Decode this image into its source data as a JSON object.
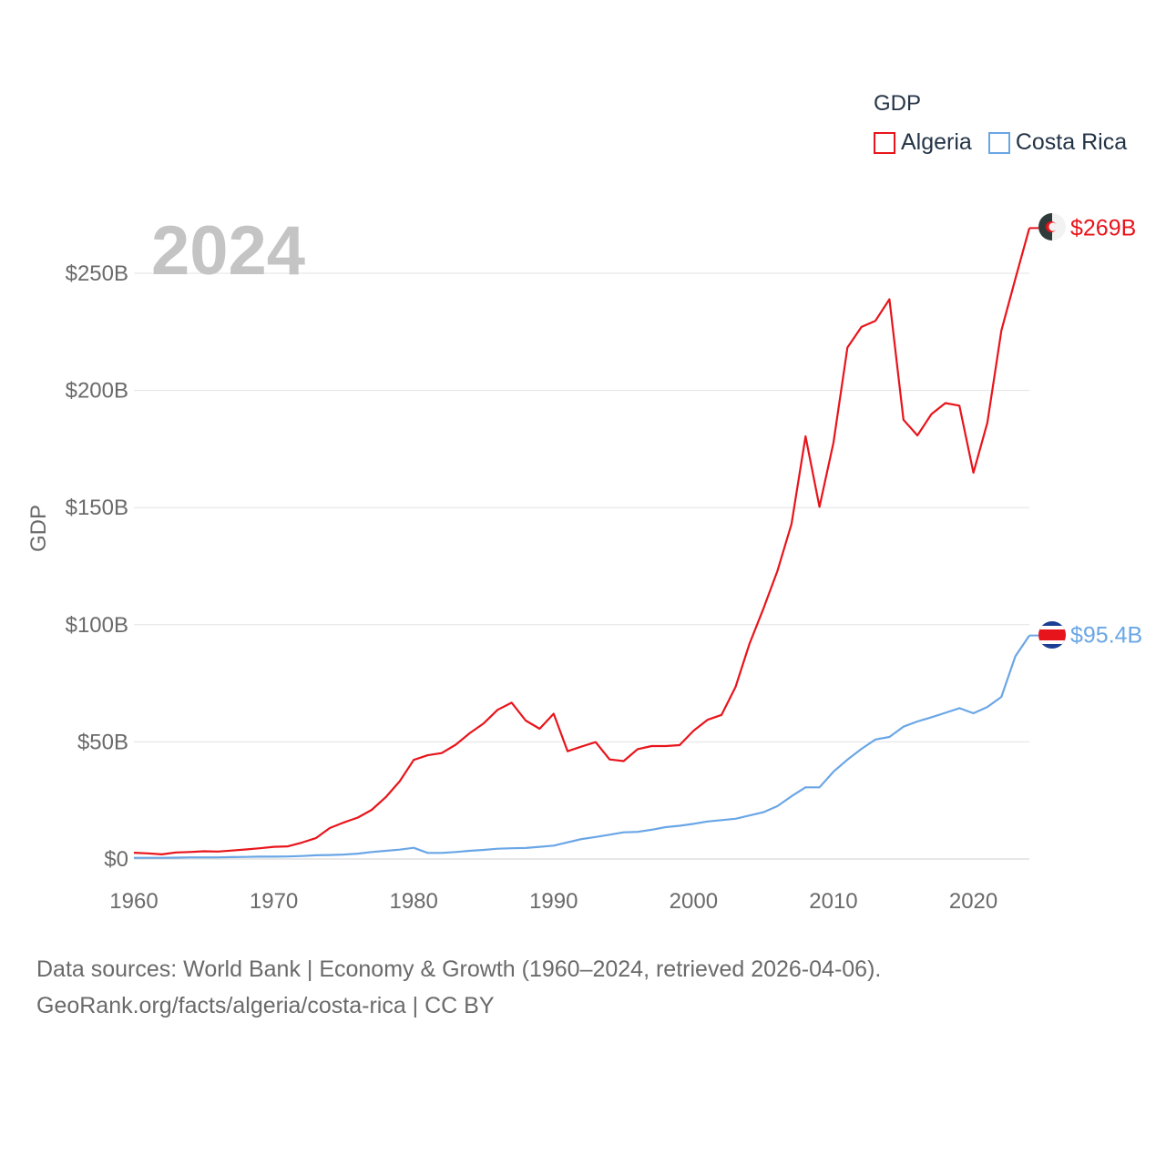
{
  "legend": {
    "title": "GDP",
    "items": [
      {
        "name": "Algeria",
        "color": "#e8141b"
      },
      {
        "name": "Costa Rica",
        "color": "#6aa6e6"
      }
    ]
  },
  "year_label": "2024",
  "footer": {
    "line1": "Data sources: World Bank | Economy & Growth (1960–2024, retrieved 2026-04-06).",
    "line2": "GeoRank.org/facts/algeria/costa-rica | CC BY"
  },
  "chart_data": {
    "type": "line",
    "title": "GDP",
    "xlabel": "",
    "ylabel": "GDP",
    "xlim": [
      1960,
      2024
    ],
    "ylim": [
      0,
      250
    ],
    "unit": "billions USD",
    "x_ticks": [
      1960,
      1970,
      1980,
      1990,
      2000,
      2010,
      2020
    ],
    "x_tick_labels": [
      "1960",
      "1970",
      "1980",
      "1990",
      "2000",
      "2010",
      "2020"
    ],
    "y_ticks": [
      0,
      50,
      100,
      150,
      200,
      250
    ],
    "y_tick_labels": [
      "$0",
      "$50B",
      "$100B",
      "$150B",
      "$200B",
      "$250B"
    ],
    "x": [
      1960,
      1961,
      1962,
      1963,
      1964,
      1965,
      1966,
      1967,
      1968,
      1969,
      1970,
      1971,
      1972,
      1973,
      1974,
      1975,
      1976,
      1977,
      1978,
      1979,
      1980,
      1981,
      1982,
      1983,
      1984,
      1985,
      1986,
      1987,
      1988,
      1989,
      1990,
      1991,
      1992,
      1993,
      1994,
      1995,
      1996,
      1997,
      1998,
      1999,
      2000,
      2001,
      2002,
      2003,
      2004,
      2005,
      2006,
      2007,
      2008,
      2009,
      2010,
      2011,
      2012,
      2013,
      2014,
      2015,
      2016,
      2017,
      2018,
      2019,
      2020,
      2021,
      2022,
      2023,
      2024
    ],
    "series": [
      {
        "name": "Algeria",
        "color": "#e8141b",
        "end_label": "$269B",
        "values": [
          2.7,
          2.4,
          2.0,
          2.8,
          3.0,
          3.3,
          3.2,
          3.6,
          4.1,
          4.6,
          5.2,
          5.4,
          7.0,
          8.9,
          13.2,
          15.6,
          17.7,
          21.0,
          26.4,
          33.2,
          42.3,
          44.3,
          45.2,
          48.8,
          53.7,
          57.9,
          63.7,
          66.7,
          59.1,
          55.6,
          62.0,
          46.0,
          48.0,
          49.9,
          42.5,
          41.8,
          46.9,
          48.2,
          48.2,
          48.6,
          54.8,
          59.4,
          61.5,
          73.5,
          91.9,
          107.0,
          123.0,
          143.0,
          180.4,
          150.3,
          177.8,
          218.3,
          227.1,
          229.7,
          238.9,
          187.5,
          180.8,
          189.9,
          194.6,
          193.5,
          164.9,
          186.2,
          225.6,
          247.6,
          269.3
        ]
      },
      {
        "name": "Costa Rica",
        "color": "#6aa6e6",
        "end_label": "$95.4B",
        "values": [
          0.5,
          0.5,
          0.5,
          0.6,
          0.7,
          0.7,
          0.7,
          0.8,
          0.9,
          1.0,
          1.0,
          1.1,
          1.3,
          1.6,
          1.7,
          1.9,
          2.3,
          3.0,
          3.5,
          4.0,
          4.8,
          2.6,
          2.6,
          3.0,
          3.5,
          3.9,
          4.4,
          4.6,
          4.7,
          5.2,
          5.7,
          7.1,
          8.5,
          9.4,
          10.4,
          11.4,
          11.6,
          12.5,
          13.6,
          14.2,
          15.0,
          16.0,
          16.6,
          17.2,
          18.6,
          20.0,
          22.6,
          26.8,
          30.6,
          30.6,
          37.3,
          42.4,
          47.0,
          51.0,
          52.1,
          56.5,
          58.7,
          60.5,
          62.4,
          64.4,
          62.2,
          64.9,
          69.2,
          86.5,
          95.4
        ]
      }
    ]
  }
}
